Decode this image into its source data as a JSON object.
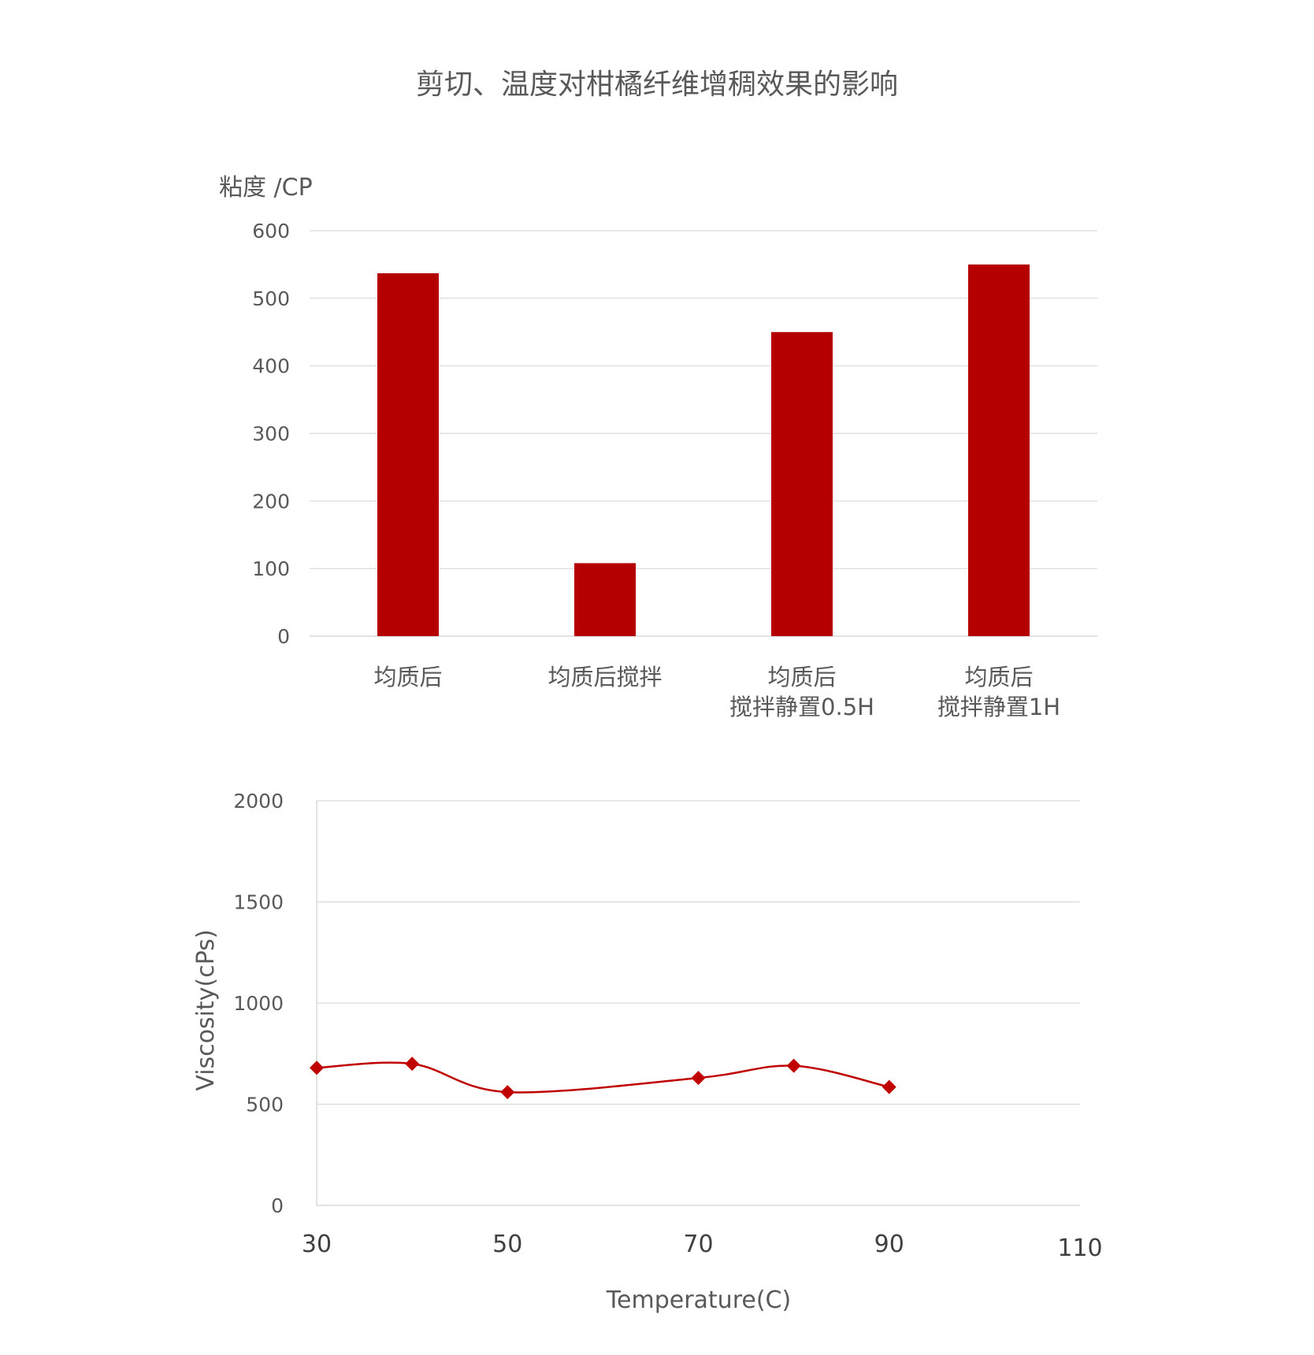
{
  "title": "剪切、温度对柑橘纤维增稠效果的影响",
  "colors": {
    "bar": "#B50000",
    "line": "#C00000",
    "grid": "#D9D9D9",
    "text": "#595959"
  },
  "chart_data": [
    {
      "type": "bar",
      "ylabel": "粘度 /CP",
      "ylim": [
        0,
        600
      ],
      "yticks": [
        "0",
        "100",
        "200",
        "300",
        "400",
        "500",
        "600"
      ],
      "categories": [
        [
          "均质后"
        ],
        [
          "均质后搅拌"
        ],
        [
          "均质后",
          "搅拌静置0.5H"
        ],
        [
          "均质后",
          "搅拌静置1H"
        ]
      ],
      "values": [
        537,
        108,
        450,
        550
      ],
      "grid": true,
      "legend": "none"
    },
    {
      "type": "line",
      "xlabel": "Temperature(C)",
      "ylabel": "Viscosity(cPs)",
      "xlim": [
        30,
        110
      ],
      "ylim": [
        0,
        2000
      ],
      "xticks": [
        "30",
        "50",
        "70",
        "90",
        "110"
      ],
      "yticks": [
        "0",
        "500",
        "1000",
        "1500",
        "2000"
      ],
      "x": [
        30,
        40,
        50,
        70,
        80,
        90
      ],
      "y": [
        680,
        700,
        560,
        630,
        690,
        585
      ],
      "smooth": true,
      "marker": "diamond",
      "grid": true,
      "legend": "none"
    }
  ]
}
